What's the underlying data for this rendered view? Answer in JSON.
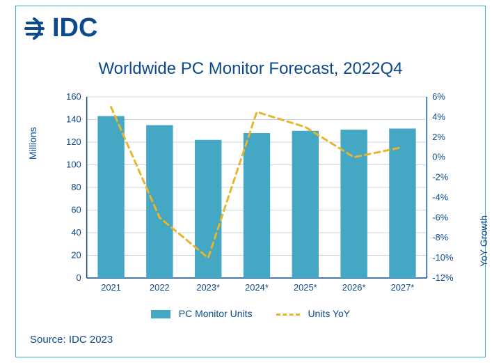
{
  "logo": {
    "text": "IDC",
    "color": "#0c4a8c"
  },
  "title": "Worldwide PC Monitor Forecast, 2022Q4",
  "source": "Source: IDC 2023",
  "chart": {
    "type": "bar+line",
    "categories": [
      "2021",
      "2022",
      "2023*",
      "2024*",
      "2025*",
      "2026*",
      "2027*"
    ],
    "bars": {
      "label": "PC Monitor Units",
      "values": [
        143,
        135,
        122,
        128,
        130,
        131,
        132
      ],
      "color": "#44a7c4",
      "bar_width": 0.55
    },
    "line": {
      "label": "Units YoY",
      "values": [
        5,
        -6,
        -10,
        4.5,
        3,
        0,
        1
      ],
      "color": "#e9b52b",
      "dash": "8 6",
      "width": 3
    },
    "y_left": {
      "label": "Millions",
      "min": 0,
      "max": 160,
      "step": 20,
      "ticks": [
        0,
        20,
        40,
        60,
        80,
        100,
        120,
        140,
        160
      ],
      "color": "#0c4a8c"
    },
    "y_right": {
      "label": "YoY Growth",
      "min": -12,
      "max": 6,
      "step": 2,
      "ticks": [
        "-12%",
        "-10%",
        "-8%",
        "-6%",
        "-4%",
        "-2%",
        "0%",
        "2%",
        "4%",
        "6%"
      ],
      "tick_vals": [
        -12,
        -10,
        -8,
        -6,
        -4,
        -2,
        0,
        2,
        4,
        6
      ],
      "color": "#0c4a8c"
    },
    "tick_fontsize": 13,
    "title_fontsize": 24,
    "background": "#ffffff",
    "grid_color": "#c9d4e4"
  }
}
